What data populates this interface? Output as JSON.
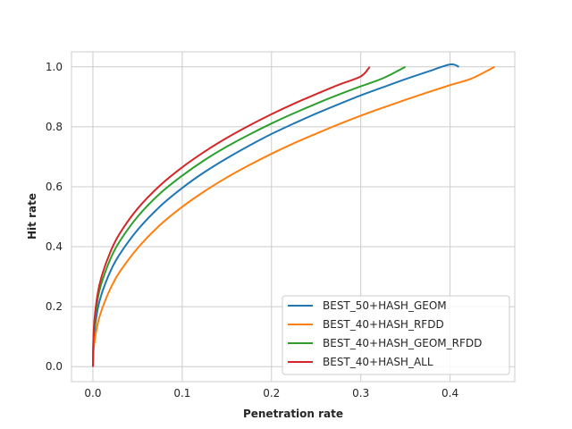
{
  "chart_data": {
    "type": "line",
    "title": "",
    "xlabel": "Penetration rate",
    "ylabel": "Hit rate",
    "xlim": [
      -0.024,
      0.4725
    ],
    "ylim": [
      -0.05,
      1.05
    ],
    "xticks": [
      0.0,
      0.1,
      0.2,
      0.3,
      0.4
    ],
    "xtick_labels": [
      "0.0",
      "0.1",
      "0.2",
      "0.3",
      "0.4"
    ],
    "yticks": [
      0.0,
      0.2,
      0.4,
      0.6,
      0.8,
      1.0
    ],
    "ytick_labels": [
      "0.0",
      "0.2",
      "0.4",
      "0.6",
      "0.8",
      "1.0"
    ],
    "grid": true,
    "legend_position": "lower-right",
    "series": [
      {
        "name": "BEST_50+HASH_GEOM",
        "color": "#1f77b4",
        "x": [
          0.0,
          0.001,
          0.005,
          0.01,
          0.02,
          0.03,
          0.05,
          0.075,
          0.1,
          0.125,
          0.15,
          0.175,
          0.2,
          0.225,
          0.25,
          0.275,
          0.3,
          0.325,
          0.35,
          0.375,
          0.4,
          0.41
        ],
        "y": [
          0.0,
          0.094,
          0.187,
          0.245,
          0.321,
          0.375,
          0.456,
          0.534,
          0.596,
          0.649,
          0.695,
          0.737,
          0.776,
          0.811,
          0.844,
          0.875,
          0.905,
          0.932,
          0.959,
          0.984,
          1.008,
          1.0
        ]
      },
      {
        "name": "BEST_40+HASH_RFDD",
        "color": "#ff7f0e",
        "x": [
          0.0,
          0.001,
          0.005,
          0.01,
          0.02,
          0.03,
          0.05,
          0.075,
          0.1,
          0.125,
          0.15,
          0.175,
          0.2,
          0.225,
          0.25,
          0.275,
          0.3,
          0.325,
          0.35,
          0.375,
          0.4,
          0.425,
          0.45
        ],
        "y": [
          0.0,
          0.064,
          0.139,
          0.191,
          0.263,
          0.316,
          0.395,
          0.472,
          0.533,
          0.585,
          0.631,
          0.672,
          0.71,
          0.745,
          0.777,
          0.808,
          0.837,
          0.864,
          0.89,
          0.915,
          0.939,
          0.962,
          1.0
        ]
      },
      {
        "name": "BEST_40+HASH_GEOM_RFDD",
        "color": "#2ca02c",
        "x": [
          0.0,
          0.001,
          0.005,
          0.01,
          0.02,
          0.03,
          0.05,
          0.075,
          0.1,
          0.125,
          0.15,
          0.175,
          0.2,
          0.225,
          0.25,
          0.275,
          0.3,
          0.325,
          0.35
        ],
        "y": [
          0.0,
          0.116,
          0.22,
          0.282,
          0.362,
          0.418,
          0.5,
          0.577,
          0.637,
          0.689,
          0.734,
          0.774,
          0.811,
          0.845,
          0.877,
          0.907,
          0.935,
          0.962,
          1.0
        ]
      },
      {
        "name": "BEST_40+HASH_ALL",
        "color": "#d62728",
        "x": [
          0.0,
          0.001,
          0.005,
          0.01,
          0.02,
          0.03,
          0.05,
          0.075,
          0.1,
          0.125,
          0.15,
          0.175,
          0.2,
          0.225,
          0.25,
          0.275,
          0.3,
          0.31
        ],
        "y": [
          0.0,
          0.128,
          0.238,
          0.304,
          0.386,
          0.444,
          0.527,
          0.604,
          0.665,
          0.717,
          0.763,
          0.804,
          0.842,
          0.877,
          0.909,
          0.94,
          0.968,
          1.0
        ]
      }
    ]
  }
}
